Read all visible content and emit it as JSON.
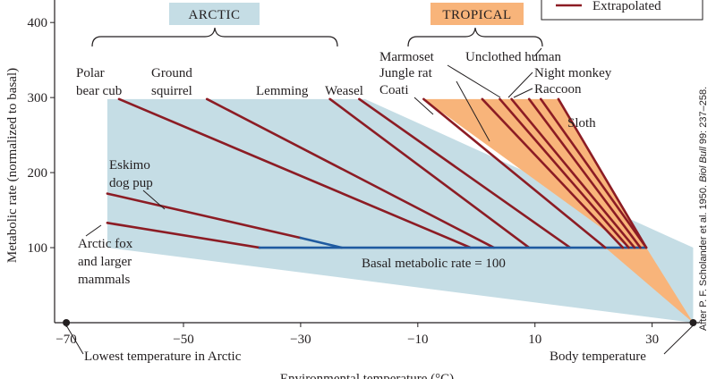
{
  "chart_data": {
    "type": "line",
    "title": "",
    "xlabel": "Environmental temperature (°C)",
    "ylabel": "Metabolic rate (normalized to basal)",
    "xlim": [
      -72,
      38
    ],
    "ylim": [
      0,
      430
    ],
    "x_ticks": [
      -70,
      -50,
      -30,
      -10,
      10,
      30
    ],
    "x_tick_labels": [
      "−70",
      "−50",
      "−30",
      "−10",
      "10",
      "30"
    ],
    "y_ticks": [
      100,
      200,
      300,
      400
    ],
    "y_tick_labels": [
      "100",
      "200",
      "300",
      "400"
    ],
    "legend": {
      "extrapolated_label": "Extrapolated",
      "position": "top-right"
    },
    "groups": [
      {
        "label": "ARCTIC",
        "x_range": [
          -63,
          -19
        ],
        "fill": "#c5dde5",
        "label_bg": "#c5dde5"
      },
      {
        "label": "TROPICAL",
        "x_range": [
          -9,
          14
        ],
        "fill": "#f8b47a",
        "label_bg": "#f8b47a"
      }
    ],
    "basal_label": "Basal metabolic rate = 100",
    "basal_value": 100,
    "body_temperature": 37,
    "lowest_temperature": -70,
    "body_temperature_label": "Body temperature",
    "lowest_temperature_label": "Lowest temperature in Arctic",
    "series": [
      {
        "name": "Polar bear cub",
        "label_lines": [
          "Polar",
          "bear cub"
        ],
        "points": [
          [
            -61,
            298
          ],
          [
            -1,
            100
          ]
        ],
        "solid_until": 0,
        "extrap_from": 1
      },
      {
        "name": "Ground squirrel",
        "label_lines": [
          "Ground",
          "squirrel"
        ],
        "points": [
          [
            -46,
            298
          ],
          [
            3,
            100
          ]
        ],
        "extrap_from": 1
      },
      {
        "name": "Lemming",
        "label_lines": [
          "Lemming"
        ],
        "points": [
          [
            -25,
            298
          ],
          [
            9,
            100
          ]
        ],
        "extrap_from": 1
      },
      {
        "name": "Weasel",
        "label_lines": [
          "Weasel"
        ],
        "points": [
          [
            -20,
            298
          ],
          [
            16,
            100
          ]
        ],
        "extrap_from": 1
      },
      {
        "name": "Eskimo dog pup",
        "label_lines": [
          "Eskimo",
          "dog pup"
        ],
        "points": [
          [
            -63,
            172
          ],
          [
            -30,
            113
          ],
          [
            -23,
            100
          ]
        ],
        "extrap_from": 1
      },
      {
        "name": "Arctic fox and larger mammals",
        "label_lines": [
          "Arctic fox",
          "and larger",
          "mammals"
        ],
        "points": [
          [
            -63,
            133
          ],
          [
            -37,
            100
          ],
          [
            29,
            100
          ]
        ],
        "extrap_from": 1
      },
      {
        "name": "Marmoset",
        "label_lines": [
          "Marmoset"
        ],
        "points": [
          [
            -9,
            298
          ],
          [
            22,
            100
          ]
        ],
        "extrap_from": 1
      },
      {
        "name": "Jungle rat",
        "label_lines": [
          "Jungle rat"
        ],
        "points": [
          [
            1,
            298
          ],
          [
            25,
            100
          ]
        ],
        "extrap_from": 1
      },
      {
        "name": "Coati",
        "label_lines": [
          "Coati"
        ],
        "points": [
          [
            4,
            298
          ],
          [
            26,
            100
          ]
        ],
        "extrap_from": 1
      },
      {
        "name": "Unclothed human",
        "label_lines": [
          "Unclothed human"
        ],
        "points": [
          [
            6,
            298
          ],
          [
            27,
            100
          ]
        ],
        "extrap_from": 1
      },
      {
        "name": "Night monkey",
        "label_lines": [
          "Night monkey"
        ],
        "points": [
          [
            9,
            298
          ],
          [
            28,
            100
          ]
        ],
        "extrap_from": 1
      },
      {
        "name": "Raccoon",
        "label_lines": [
          "Raccoon"
        ],
        "points": [
          [
            11,
            298
          ],
          [
            29,
            100
          ]
        ],
        "extrap_from": 1
      },
      {
        "name": "Sloth",
        "label_lines": [
          "Sloth"
        ],
        "points": [
          [
            14,
            298
          ],
          [
            29,
            100
          ]
        ],
        "extrap_from": 1
      }
    ]
  },
  "credit": {
    "prefix": "After P. F. Scholander et al. 1950. ",
    "journal": "Biol Bull",
    "suffix": " 99: 237–258."
  }
}
